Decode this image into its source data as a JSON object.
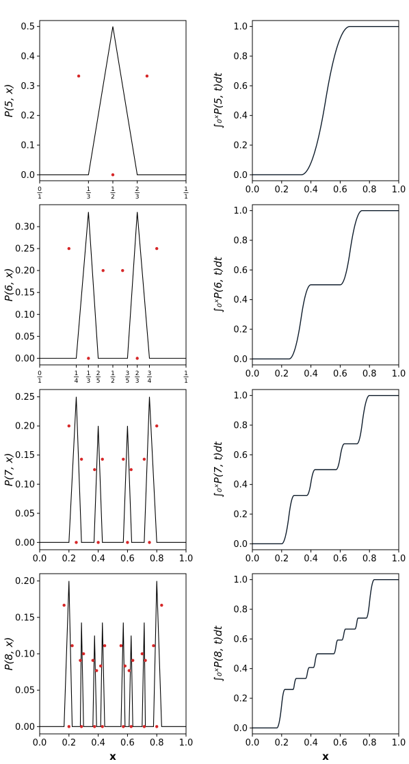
{
  "figure": {
    "xlabel": "x"
  },
  "chart_data": [
    {
      "type": "line",
      "panel": "P5",
      "ylabel": "P(5, x)",
      "xlim": [
        0,
        1
      ],
      "ylim": [
        -0.02,
        0.52
      ],
      "yticks": [
        0.0,
        0.1,
        0.2,
        0.3,
        0.4,
        0.5
      ],
      "ytick_labels": [
        "0.0",
        "0.1",
        "0.2",
        "0.3",
        "0.4",
        "0.5"
      ],
      "xtick_fracs": [
        [
          "0",
          "1"
        ],
        [
          "1",
          "3"
        ],
        [
          "1",
          "2"
        ],
        [
          "2",
          "3"
        ],
        [
          "1",
          "1"
        ]
      ],
      "xtick_vals": [
        0,
        0.3333,
        0.5,
        0.6667,
        1
      ],
      "x": [
        0,
        0.2,
        0.3333,
        0.5,
        0.6667,
        0.8,
        1
      ],
      "y": [
        0,
        0,
        0,
        0.5,
        0,
        0,
        0
      ],
      "points": [
        [
          0.2667,
          0.333
        ],
        [
          0.5,
          0
        ],
        [
          0.7333,
          0.333
        ]
      ]
    },
    {
      "type": "line",
      "panel": "C5",
      "ylabel": "∫₀ˣP(5, t)dt",
      "xlim": [
        0,
        1
      ],
      "ylim": [
        -0.04,
        1.04
      ],
      "yticks": [
        0.0,
        0.2,
        0.4,
        0.6,
        0.8,
        1.0
      ],
      "ytick_labels": [
        "0.0",
        "0.2",
        "0.4",
        "0.6",
        "0.8",
        "1.0"
      ],
      "xticks": [
        0.0,
        0.2,
        0.4,
        0.6,
        0.8,
        1.0
      ],
      "xtick_labels": [
        "0.0",
        "0.2",
        "0.4",
        "0.6",
        "0.8",
        "1.0"
      ],
      "cdf_of": "P5"
    },
    {
      "type": "line",
      "panel": "P6",
      "ylabel": "P(6, x)",
      "xlim": [
        0,
        1
      ],
      "ylim": [
        -0.015,
        0.35
      ],
      "yticks": [
        0.0,
        0.05,
        0.1,
        0.15,
        0.2,
        0.25,
        0.3
      ],
      "ytick_labels": [
        "0.00",
        "0.05",
        "0.10",
        "0.15",
        "0.20",
        "0.25",
        "0.30"
      ],
      "xtick_fracs": [
        [
          "0",
          "1"
        ],
        [
          "1",
          "4"
        ],
        [
          "1",
          "3"
        ],
        [
          "2",
          "5"
        ],
        [
          "1",
          "2"
        ],
        [
          "3",
          "5"
        ],
        [
          "2",
          "3"
        ],
        [
          "3",
          "4"
        ],
        [
          "1",
          "1"
        ]
      ],
      "xtick_vals": [
        0,
        0.25,
        0.3333,
        0.4,
        0.5,
        0.6,
        0.6667,
        0.75,
        1
      ],
      "x": [
        0,
        0.25,
        0.3333,
        0.4,
        0.5,
        0.6,
        0.6667,
        0.75,
        1
      ],
      "y": [
        0,
        0,
        0.3333,
        0,
        0,
        0,
        0.3333,
        0,
        0
      ],
      "points": [
        [
          0.2,
          0.25
        ],
        [
          0.3333,
          0
        ],
        [
          0.4333,
          0.2
        ],
        [
          0.5667,
          0.2
        ],
        [
          0.6667,
          0
        ],
        [
          0.8,
          0.25
        ]
      ]
    },
    {
      "type": "line",
      "panel": "C6",
      "ylabel": "∫₀ˣP(6, t)dt",
      "xlim": [
        0,
        1
      ],
      "ylim": [
        -0.04,
        1.04
      ],
      "yticks": [
        0.0,
        0.2,
        0.4,
        0.6,
        0.8,
        1.0
      ],
      "ytick_labels": [
        "0.0",
        "0.2",
        "0.4",
        "0.6",
        "0.8",
        "1.0"
      ],
      "xticks": [
        0.0,
        0.2,
        0.4,
        0.6,
        0.8,
        1.0
      ],
      "xtick_labels": [
        "0.0",
        "0.2",
        "0.4",
        "0.6",
        "0.8",
        "1.0"
      ],
      "cdf_of": "P6"
    },
    {
      "type": "line",
      "panel": "P7",
      "ylabel": "P(7, x)",
      "xlim": [
        0,
        1
      ],
      "ylim": [
        -0.0125,
        0.2625
      ],
      "yticks": [
        0.0,
        0.05,
        0.1,
        0.15,
        0.2,
        0.25
      ],
      "ytick_labels": [
        "0.00",
        "0.05",
        "0.10",
        "0.15",
        "0.20",
        "0.25"
      ],
      "xticks": [
        0.0,
        0.2,
        0.4,
        0.6,
        0.8,
        1.0
      ],
      "xtick_labels": [
        "0.0",
        "0.2",
        "0.4",
        "0.6",
        "0.8",
        "1.0"
      ],
      "x": [
        0,
        0.2,
        0.25,
        0.2857,
        0.3714,
        0.4,
        0.4286,
        0.5714,
        0.6,
        0.6286,
        0.7143,
        0.75,
        0.8,
        1
      ],
      "y": [
        0,
        0,
        0.25,
        0,
        0,
        0.2,
        0,
        0,
        0.2,
        0,
        0,
        0.25,
        0,
        0
      ],
      "points": [
        [
          0.2,
          0.2
        ],
        [
          0.25,
          0
        ],
        [
          0.2857,
          0.1429
        ],
        [
          0.375,
          0.125
        ],
        [
          0.4,
          0
        ],
        [
          0.4286,
          0.1429
        ],
        [
          0.5714,
          0.1429
        ],
        [
          0.6,
          0
        ],
        [
          0.625,
          0.125
        ],
        [
          0.7143,
          0.1429
        ],
        [
          0.75,
          0
        ],
        [
          0.8,
          0.2
        ]
      ]
    },
    {
      "type": "line",
      "panel": "C7",
      "ylabel": "∫₀ˣP(7, t)dt",
      "xlim": [
        0,
        1
      ],
      "ylim": [
        -0.04,
        1.04
      ],
      "yticks": [
        0.0,
        0.2,
        0.4,
        0.6,
        0.8,
        1.0
      ],
      "ytick_labels": [
        "0.0",
        "0.2",
        "0.4",
        "0.6",
        "0.8",
        "1.0"
      ],
      "xticks": [
        0.0,
        0.2,
        0.4,
        0.6,
        0.8,
        1.0
      ],
      "xtick_labels": [
        "0.0",
        "0.2",
        "0.4",
        "0.6",
        "0.8",
        "1.0"
      ],
      "cdf_of": "P7"
    },
    {
      "type": "line",
      "panel": "P8",
      "ylabel": "P(8, x)",
      "xlim": [
        0,
        1
      ],
      "ylim": [
        -0.01,
        0.21
      ],
      "yticks": [
        0.0,
        0.05,
        0.1,
        0.15,
        0.2
      ],
      "ytick_labels": [
        "0.00",
        "0.05",
        "0.10",
        "0.15",
        "0.20"
      ],
      "xticks": [
        0.0,
        0.2,
        0.4,
        0.6,
        0.8,
        1.0
      ],
      "xtick_labels": [
        "0.0",
        "0.2",
        "0.4",
        "0.6",
        "0.8",
        "1.0"
      ],
      "xlabel_bound": true,
      "x": [
        0,
        0.1667,
        0.2,
        0.2222,
        0.2778,
        0.2857,
        0.3,
        0.3636,
        0.375,
        0.3889,
        0.4167,
        0.4286,
        0.4444,
        0.5556,
        0.5714,
        0.5833,
        0.6111,
        0.625,
        0.6364,
        0.7,
        0.7143,
        0.7222,
        0.7778,
        0.8,
        0.8333,
        1
      ],
      "y": [
        0,
        0,
        0.2,
        0,
        0,
        0.1429,
        0,
        0,
        0.125,
        0,
        0,
        0.1429,
        0,
        0,
        0.1429,
        0,
        0,
        0.125,
        0,
        0,
        0.1429,
        0,
        0,
        0.2,
        0,
        0
      ],
      "points": [
        [
          0.1667,
          0.1667
        ],
        [
          0.2,
          0
        ],
        [
          0.2222,
          0.1111
        ],
        [
          0.2778,
          0.0909
        ],
        [
          0.2857,
          0
        ],
        [
          0.3,
          0.1
        ],
        [
          0.3636,
          0.0909
        ],
        [
          0.375,
          0
        ],
        [
          0.3889,
          0.0769
        ],
        [
          0.4167,
          0.0833
        ],
        [
          0.4286,
          0
        ],
        [
          0.4444,
          0.1111
        ],
        [
          0.5556,
          0.1111
        ],
        [
          0.5714,
          0
        ],
        [
          0.5833,
          0.0833
        ],
        [
          0.6111,
          0.0769
        ],
        [
          0.625,
          0
        ],
        [
          0.6364,
          0.0909
        ],
        [
          0.7,
          0.1
        ],
        [
          0.7143,
          0
        ],
        [
          0.7222,
          0.0909
        ],
        [
          0.7778,
          0.1111
        ],
        [
          0.8,
          0
        ],
        [
          0.8333,
          0.1667
        ]
      ]
    },
    {
      "type": "line",
      "panel": "C8",
      "ylabel": "∫₀ˣP(8, t)dt",
      "xlim": [
        0,
        1
      ],
      "ylim": [
        -0.04,
        1.04
      ],
      "yticks": [
        0.0,
        0.2,
        0.4,
        0.6,
        0.8,
        1.0
      ],
      "ytick_labels": [
        "0.0",
        "0.2",
        "0.4",
        "0.6",
        "0.8",
        "1.0"
      ],
      "xticks": [
        0.0,
        0.2,
        0.4,
        0.6,
        0.8,
        1.0
      ],
      "xtick_labels": [
        "0.0",
        "0.2",
        "0.4",
        "0.6",
        "0.8",
        "1.0"
      ],
      "xlabel_bound": true,
      "cdf_of": "P8"
    }
  ],
  "colors": {
    "line_left": "#000000",
    "line_right": "#0d1b2a",
    "points": "#d62728"
  }
}
